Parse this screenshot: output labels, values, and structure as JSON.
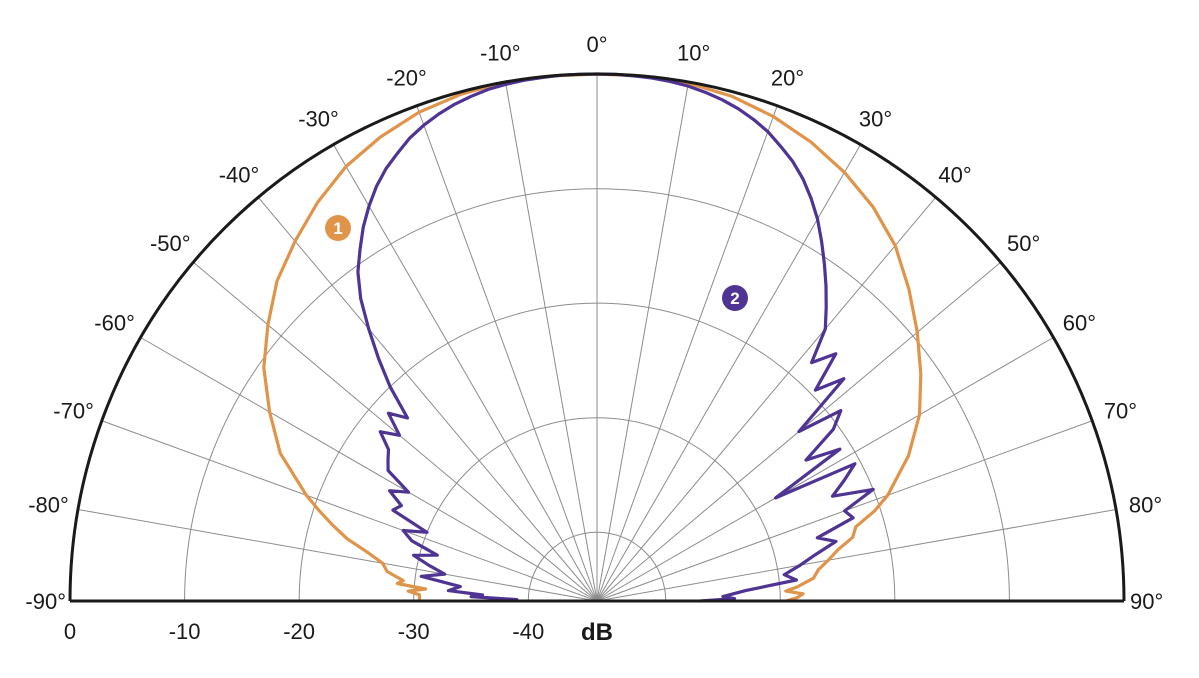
{
  "chart_data": {
    "type": "polar-line",
    "unit_label": "dB",
    "r_ticks": [
      "0",
      "-10",
      "-20",
      "-30",
      "-40"
    ],
    "r_range": [
      -46,
      0
    ],
    "angle_ticks": [
      "-90°",
      "-80°",
      "-70°",
      "-60°",
      "-50°",
      "-40°",
      "-30°",
      "-20°",
      "-10°",
      "0°",
      "10°",
      "20°",
      "30°",
      "40°",
      "50°",
      "60°",
      "70°",
      "80°",
      "90°"
    ],
    "angle_range_deg": [
      -90,
      90
    ],
    "angle_step_deg": 10,
    "series": [
      {
        "marker": "1",
        "color": "#e0944a",
        "angles": [
          -90,
          -88,
          -87,
          -86,
          -85,
          -84,
          -82,
          -80,
          -78,
          -76,
          -74,
          -72,
          -70,
          -65,
          -60,
          -55,
          -50,
          -45,
          -40,
          -35,
          -30,
          -25,
          -20,
          -15,
          -10,
          -5,
          0,
          5,
          10,
          15,
          20,
          25,
          30,
          35,
          40,
          45,
          50,
          55,
          60,
          65,
          70,
          72,
          74,
          76,
          78,
          80,
          82,
          84,
          86,
          87,
          88,
          89,
          90
        ],
        "values": [
          -30.5,
          -30.5,
          -29.5,
          -31.0,
          -28.5,
          -29.0,
          -27.5,
          -27.0,
          -25.5,
          -23.5,
          -22.0,
          -20.5,
          -19.0,
          -15.5,
          -13.0,
          -10.5,
          -8.5,
          -6.5,
          -5.0,
          -3.5,
          -2.2,
          -1.3,
          -0.6,
          -0.2,
          0.0,
          0.0,
          0.0,
          0.0,
          -0.1,
          -0.4,
          -1.0,
          -1.8,
          -2.8,
          -4.0,
          -5.5,
          -7.5,
          -9.5,
          -11.5,
          -13.5,
          -16.0,
          -19.0,
          -20.5,
          -22.5,
          -23.0,
          -24.5,
          -25.5,
          -26.5,
          -27.0,
          -28.5,
          -29.5,
          -28.0,
          -28.5,
          -29.5
        ]
      },
      {
        "marker": "2",
        "color": "#4f3493",
        "angles": [
          -90,
          -89,
          -88,
          -87,
          -86,
          -84,
          -82,
          -80,
          -78,
          -76,
          -74,
          -72,
          -70,
          -68,
          -66,
          -64,
          -62,
          -60,
          -58,
          -56,
          -54,
          -52,
          -50,
          -48,
          -46,
          -44,
          -42,
          -40,
          -38,
          -36,
          -34,
          -32,
          -30,
          -28,
          -26,
          -24,
          -22,
          -20,
          -18,
          -16,
          -14,
          -12,
          -10,
          -8,
          -6,
          -4,
          -2,
          0,
          2,
          4,
          6,
          8,
          10,
          12,
          14,
          16,
          18,
          20,
          22,
          24,
          26,
          28,
          30,
          32,
          34,
          36,
          38,
          40,
          42,
          44,
          46,
          48,
          50,
          52,
          54,
          56,
          58,
          60,
          62,
          64,
          66,
          68,
          70,
          72,
          74,
          76,
          78,
          80,
          82,
          84,
          86,
          88,
          89,
          90
        ],
        "values": [
          -39.0,
          -39.0,
          -35.0,
          -36.0,
          -33.0,
          -34.0,
          -30.5,
          -32.5,
          -31.0,
          -29.5,
          -31.5,
          -29.0,
          -28.0,
          -30.0,
          -26.5,
          -27.0,
          -25.5,
          -27.0,
          -24.5,
          -24.0,
          -23.5,
          -22.0,
          -23.5,
          -21.5,
          -23.0,
          -20.0,
          -17.5,
          -15.0,
          -12.5,
          -10.5,
          -9.0,
          -7.5,
          -6.2,
          -5.0,
          -4.0,
          -3.2,
          -2.4,
          -1.8,
          -1.3,
          -0.9,
          -0.6,
          -0.35,
          -0.2,
          -0.1,
          -0.05,
          0.0,
          0.0,
          0.0,
          0.0,
          -0.05,
          -0.1,
          -0.2,
          -0.35,
          -0.6,
          -0.9,
          -1.3,
          -1.8,
          -2.4,
          -3.2,
          -4.0,
          -5.0,
          -6.2,
          -7.5,
          -9.0,
          -10.5,
          -12.0,
          -13.5,
          -15.0,
          -18.0,
          -16.0,
          -19.5,
          -17.0,
          -23.0,
          -19.0,
          -20.5,
          -24.0,
          -21.0,
          -28.0,
          -20.5,
          -22.0,
          -23.5,
          -20.0,
          -23.0,
          -22.5,
          -26.0,
          -24.5,
          -26.5,
          -28.0,
          -29.5,
          -28.5,
          -33.0,
          -35.0,
          -34.0,
          -37.0
        ]
      }
    ]
  }
}
